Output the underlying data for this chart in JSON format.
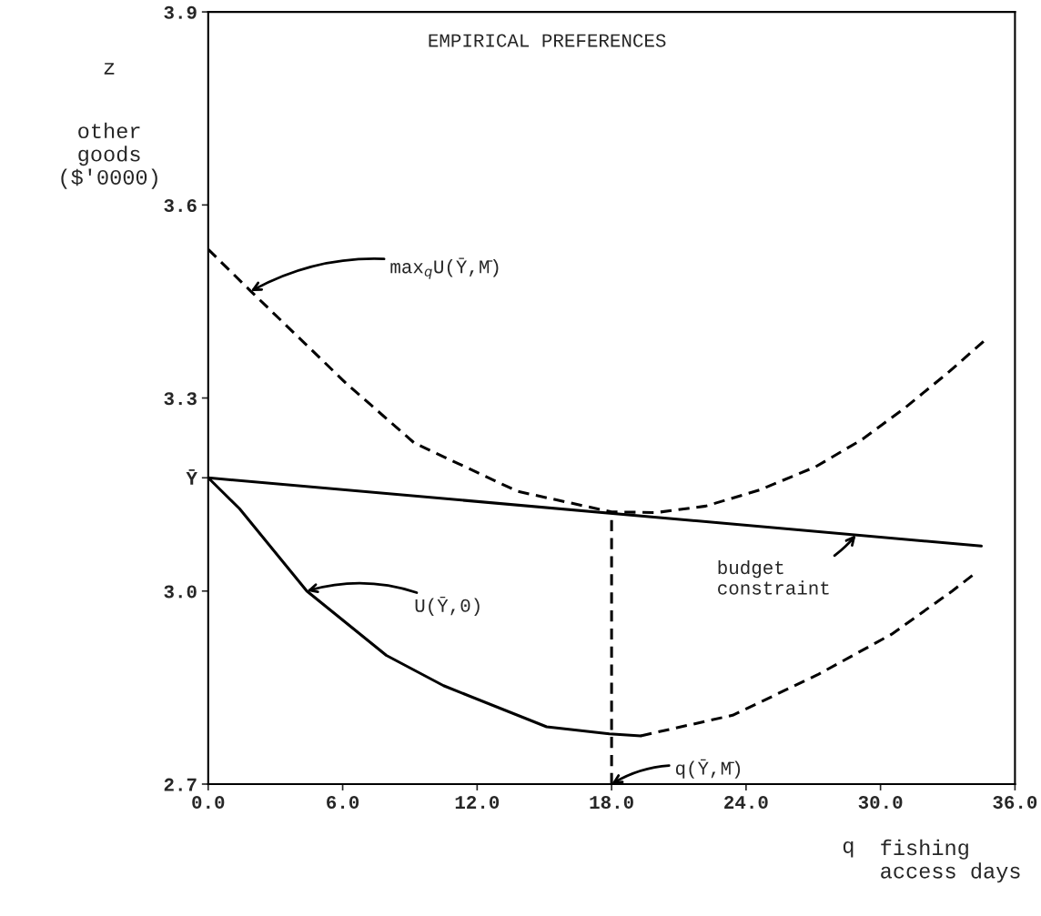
{
  "chart_data": {
    "type": "line",
    "title": "EMPIRICAL PREFERENCES",
    "xlabel": "q",
    "ylabel": "z",
    "xlim": [
      0,
      36
    ],
    "xticks": [
      {
        "value": 0,
        "label": "0.0"
      },
      {
        "value": 6,
        "label": "6.0"
      },
      {
        "value": 12,
        "label": "12.0"
      },
      {
        "value": 18,
        "label": "18.0"
      },
      {
        "value": 24,
        "label": "24.0"
      },
      {
        "value": 30,
        "label": "30.0"
      },
      {
        "value": 36,
        "label": "36.0"
      }
    ],
    "ylim": [
      2.7,
      3.9
    ],
    "yticks": [
      2.7,
      {
        "value": 3.0,
        "label": "3.0"
      },
      {
        "value": 3.176,
        "label": "Ȳ"
      },
      3.3,
      3.6,
      3.9
    ],
    "grid": false,
    "legend": false,
    "marker": "none",
    "series": [
      {
        "color": "#000000",
        "line_style": "solid",
        "x": [
          0,
          34.5
        ],
        "values": [
          3.176,
          3.07
        ]
      },
      {
        "color": "#000000",
        "line_style": "dashed",
        "x": [
          0,
          1.9,
          6.15,
          9.2,
          13.8,
          18,
          20,
          22.2,
          24.6,
          27.1,
          29.2,
          31.1,
          33.0,
          34.6
        ],
        "values": [
          3.531,
          3.466,
          3.323,
          3.23,
          3.155,
          3.123,
          3.122,
          3.132,
          3.157,
          3.193,
          3.236,
          3.285,
          3.339,
          3.388
        ]
      },
      {
        "color": "#000000",
        "line_style": "solid",
        "x": [
          0,
          1.4,
          4.4,
          7.95,
          10.5,
          15.1,
          17.9,
          19.3
        ],
        "values": [
          3.176,
          3.128,
          3.0,
          2.9,
          2.853,
          2.789,
          2.778,
          2.775
        ]
      },
      {
        "color": "#000000",
        "line_style": "dashed",
        "x": [
          19.3,
          23.4,
          27.2,
          30.5,
          33.2,
          34.2
        ],
        "values": [
          2.775,
          2.807,
          2.87,
          2.933,
          3.0,
          3.027
        ]
      },
      {
        "color": "#000000",
        "line_style": "dashed",
        "x": [
          18,
          18
        ],
        "values": [
          2.7,
          3.123
        ]
      }
    ],
    "annotations": [
      {
        "text": "max$_{q}$U(Ȳ,M̄)",
        "x": 1.9,
        "y": 3.466
      },
      {
        "text": "U(Ȳ,0)",
        "x": 4.4,
        "y": 3.0
      },
      {
        "text": "budget\nconstraint",
        "x": 28.9,
        "y": 3.087
      },
      {
        "text": "q(Ȳ,M̄)",
        "x": 18,
        "y": 2.7
      },
      "other\ngoods\n($'0000)",
      "fishing\naccess days"
    ]
  }
}
